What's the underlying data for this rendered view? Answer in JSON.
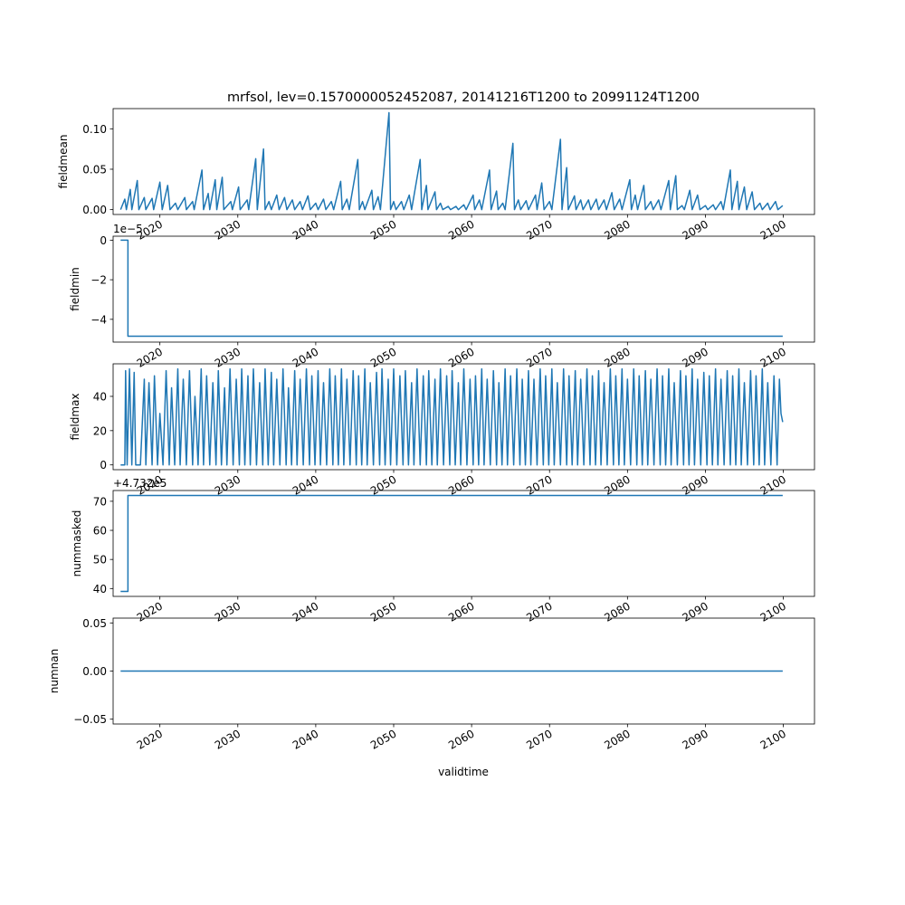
{
  "title": "mrfsol, lev=0.1570000052452087, 20141216T1200 to 20991124T1200",
  "xlabel": "validtime",
  "xticks": [
    "2020",
    "2030",
    "2040",
    "2050",
    "2060",
    "2070",
    "2080",
    "2090",
    "2100"
  ],
  "line_color": "#1f77b4",
  "chart_data": [
    {
      "type": "line",
      "ylabel": "fieldmean",
      "xlim": [
        2014.0,
        2104.0
      ],
      "ylim": [
        -0.006,
        0.125
      ],
      "yticks": [
        "0.00",
        "0.05",
        "0.10"
      ],
      "ytick_values": [
        0.0,
        0.05,
        0.1
      ],
      "offset_text": "",
      "x": [
        2014.96,
        2015.5,
        2015.7,
        2016.2,
        2016.4,
        2017.1,
        2017.3,
        2018.0,
        2018.2,
        2019.0,
        2019.2,
        2020.0,
        2020.3,
        2021.0,
        2021.3,
        2022.0,
        2022.3,
        2023.2,
        2023.4,
        2024.2,
        2024.4,
        2025.4,
        2025.6,
        2026.2,
        2026.4,
        2027.1,
        2027.3,
        2028.0,
        2028.2,
        2029.1,
        2029.3,
        2030.1,
        2030.3,
        2031.2,
        2031.4,
        2032.3,
        2032.5,
        2033.3,
        2033.5,
        2034.0,
        2034.3,
        2035.0,
        2035.3,
        2036.0,
        2036.3,
        2037.0,
        2037.3,
        2038.0,
        2038.3,
        2039.0,
        2039.3,
        2040.0,
        2040.3,
        2041.0,
        2041.3,
        2042.0,
        2042.3,
        2043.2,
        2043.4,
        2044.0,
        2044.3,
        2045.4,
        2045.6,
        2046.0,
        2046.3,
        2047.2,
        2047.4,
        2048.0,
        2048.3,
        2049.4,
        2049.6,
        2050.0,
        2050.3,
        2051.0,
        2051.3,
        2052.0,
        2052.3,
        2053.4,
        2053.6,
        2054.2,
        2054.4,
        2055.3,
        2055.5,
        2056.0,
        2056.3,
        2057.0,
        2057.3,
        2058.0,
        2058.3,
        2059.0,
        2059.3,
        2060.2,
        2060.4,
        2061.0,
        2061.3,
        2062.3,
        2062.5,
        2063.2,
        2063.4,
        2064.0,
        2064.3,
        2065.3,
        2065.5,
        2066.0,
        2066.3,
        2067.0,
        2067.3,
        2068.2,
        2068.4,
        2069.0,
        2069.3,
        2070.0,
        2070.3,
        2071.4,
        2071.6,
        2072.2,
        2072.4,
        2073.2,
        2073.4,
        2074.0,
        2074.3,
        2075.0,
        2075.3,
        2076.0,
        2076.3,
        2077.0,
        2077.3,
        2078.0,
        2078.3,
        2079.0,
        2079.3,
        2080.3,
        2080.5,
        2081.0,
        2081.3,
        2082.1,
        2082.3,
        2083.0,
        2083.3,
        2084.0,
        2084.3,
        2085.3,
        2085.5,
        2086.2,
        2086.4,
        2087.0,
        2087.3,
        2088.0,
        2088.3,
        2089.0,
        2089.3,
        2090.0,
        2090.3,
        2091.0,
        2091.3,
        2092.0,
        2092.3,
        2093.2,
        2093.4,
        2094.1,
        2094.3,
        2095.0,
        2095.3,
        2096.0,
        2096.3,
        2097.0,
        2097.3,
        2098.0,
        2098.3,
        2099.0,
        2099.3,
        2099.92
      ],
      "y": [
        0.0,
        0.013,
        0.0,
        0.025,
        0.0,
        0.036,
        0.0,
        0.015,
        0.0,
        0.014,
        0.0,
        0.034,
        0.0,
        0.03,
        0.0,
        0.008,
        0.0,
        0.015,
        0.0,
        0.01,
        0.0,
        0.049,
        0.0,
        0.02,
        0.0,
        0.037,
        0.0,
        0.04,
        0.0,
        0.01,
        0.0,
        0.028,
        0.0,
        0.012,
        0.0,
        0.063,
        0.0,
        0.075,
        0.0,
        0.01,
        0.0,
        0.018,
        0.0,
        0.015,
        0.0,
        0.012,
        0.0,
        0.01,
        0.0,
        0.017,
        0.0,
        0.008,
        0.0,
        0.013,
        0.0,
        0.01,
        0.0,
        0.035,
        0.0,
        0.013,
        0.0,
        0.062,
        0.0,
        0.01,
        0.0,
        0.024,
        0.0,
        0.016,
        0.0,
        0.12,
        0.0,
        0.01,
        0.0,
        0.01,
        0.0,
        0.018,
        0.0,
        0.062,
        0.0,
        0.03,
        0.0,
        0.022,
        0.0,
        0.008,
        0.0,
        0.004,
        0.0,
        0.004,
        0.0,
        0.006,
        0.0,
        0.018,
        0.0,
        0.012,
        0.0,
        0.049,
        0.0,
        0.023,
        0.0,
        0.008,
        0.0,
        0.082,
        0.0,
        0.012,
        0.0,
        0.011,
        0.0,
        0.018,
        0.0,
        0.033,
        0.0,
        0.01,
        0.0,
        0.087,
        0.0,
        0.052,
        0.0,
        0.017,
        0.0,
        0.012,
        0.0,
        0.012,
        0.0,
        0.013,
        0.0,
        0.012,
        0.0,
        0.021,
        0.0,
        0.013,
        0.0,
        0.037,
        0.0,
        0.018,
        0.0,
        0.03,
        0.0,
        0.01,
        0.0,
        0.012,
        0.0,
        0.036,
        0.0,
        0.042,
        0.0,
        0.005,
        0.0,
        0.024,
        0.0,
        0.018,
        0.0,
        0.005,
        0.0,
        0.006,
        0.0,
        0.01,
        0.0,
        0.049,
        0.0,
        0.035,
        0.0,
        0.028,
        0.0,
        0.022,
        0.0,
        0.008,
        0.0,
        0.008,
        0.0,
        0.01,
        0.0,
        0.005
      ]
    },
    {
      "type": "line",
      "ylabel": "fieldmin",
      "xlim": [
        2014.0,
        2104.0
      ],
      "ylim": [
        -5.15e-05,
        2e-06
      ],
      "yticks": [
        "0",
        "−2",
        "−4"
      ],
      "ytick_values": [
        0.0,
        -2e-05,
        -4e-05
      ],
      "offset_text": "1e−5",
      "x": [
        2014.96,
        2015.9,
        2015.9,
        2099.92
      ],
      "y": [
        0.0,
        0.0,
        -4.85e-05,
        -4.85e-05
      ]
    },
    {
      "type": "line",
      "ylabel": "fieldmax",
      "xlim": [
        2014.0,
        2104.0
      ],
      "ylim": [
        -2.8,
        59.0
      ],
      "yticks": [
        "0",
        "20",
        "40"
      ],
      "ytick_values": [
        0,
        20,
        40
      ],
      "offset_text": "",
      "x": [
        2014.96,
        2015.5,
        2015.6,
        2015.8,
        2016.1,
        2016.4,
        2016.7,
        2016.9,
        2017.5,
        2018.0,
        2018.2,
        2018.6,
        2019.0,
        2019.3,
        2019.7,
        2020.0,
        2020.4,
        2020.8,
        2021.2,
        2021.5,
        2021.9,
        2022.3,
        2022.6,
        2023.0,
        2023.4,
        2023.8,
        2024.2,
        2024.5,
        2024.9,
        2025.3,
        2025.6,
        2026.0,
        2026.4,
        2026.8,
        2027.2,
        2027.5,
        2027.9,
        2028.3,
        2028.6,
        2029.0,
        2029.4,
        2029.8,
        2030.2,
        2030.5,
        2030.9,
        2031.3,
        2031.6,
        2032.0,
        2032.4,
        2032.8,
        2033.2,
        2033.5,
        2033.9,
        2034.3,
        2034.6,
        2035.0,
        2035.4,
        2035.8,
        2036.2,
        2036.5,
        2036.9,
        2037.3,
        2037.6,
        2038.0,
        2038.4,
        2038.8,
        2039.2,
        2039.5,
        2039.9,
        2040.3,
        2040.6,
        2041.0,
        2041.4,
        2041.8,
        2042.2,
        2042.5,
        2042.9,
        2043.3,
        2043.6,
        2044.0,
        2044.4,
        2044.8,
        2045.2,
        2045.5,
        2045.9,
        2046.3,
        2046.6,
        2047.0,
        2047.4,
        2047.8,
        2048.2,
        2048.5,
        2048.9,
        2049.3,
        2049.6,
        2050.0,
        2050.4,
        2050.8,
        2051.2,
        2051.5,
        2051.9,
        2052.3,
        2052.6,
        2053.0,
        2053.4,
        2053.8,
        2054.2,
        2054.5,
        2054.9,
        2055.3,
        2055.6,
        2056.0,
        2056.4,
        2056.8,
        2057.2,
        2057.5,
        2057.9,
        2058.3,
        2058.6,
        2059.0,
        2059.4,
        2059.8,
        2060.2,
        2060.5,
        2060.9,
        2061.3,
        2061.6,
        2062.0,
        2062.4,
        2062.8,
        2063.2,
        2063.5,
        2063.9,
        2064.3,
        2064.6,
        2065.0,
        2065.4,
        2065.8,
        2066.2,
        2066.5,
        2066.9,
        2067.3,
        2067.6,
        2068.0,
        2068.4,
        2068.8,
        2069.2,
        2069.5,
        2069.9,
        2070.3,
        2070.6,
        2071.0,
        2071.4,
        2071.8,
        2072.2,
        2072.5,
        2072.9,
        2073.3,
        2073.6,
        2074.0,
        2074.4,
        2074.8,
        2075.2,
        2075.5,
        2075.9,
        2076.3,
        2076.6,
        2077.0,
        2077.4,
        2077.8,
        2078.2,
        2078.5,
        2078.9,
        2079.3,
        2079.6,
        2080.0,
        2080.4,
        2080.8,
        2081.2,
        2081.5,
        2081.9,
        2082.3,
        2082.6,
        2083.0,
        2083.4,
        2083.8,
        2084.2,
        2084.5,
        2084.9,
        2085.3,
        2085.6,
        2086.0,
        2086.4,
        2086.8,
        2087.2,
        2087.5,
        2087.9,
        2088.3,
        2088.6,
        2089.0,
        2089.4,
        2089.8,
        2090.2,
        2090.5,
        2090.9,
        2091.3,
        2091.6,
        2092.0,
        2092.4,
        2092.8,
        2093.2,
        2093.5,
        2093.9,
        2094.3,
        2094.6,
        2095.0,
        2095.4,
        2095.8,
        2096.2,
        2096.5,
        2096.9,
        2097.3,
        2097.6,
        2098.0,
        2098.4,
        2098.8,
        2099.2,
        2099.5,
        2099.7,
        2099.92
      ],
      "y": [
        0,
        0,
        55,
        0,
        56,
        0,
        54,
        0,
        0,
        50,
        0,
        48,
        0,
        52,
        0,
        30,
        0,
        55,
        0,
        45,
        0,
        56,
        0,
        50,
        0,
        55,
        0,
        40,
        0,
        56,
        0,
        52,
        0,
        48,
        0,
        55,
        0,
        45,
        0,
        56,
        0,
        50,
        0,
        56,
        0,
        52,
        0,
        56,
        0,
        48,
        0,
        56,
        0,
        54,
        0,
        50,
        0,
        56,
        0,
        45,
        0,
        55,
        0,
        50,
        0,
        56,
        0,
        52,
        0,
        55,
        0,
        48,
        0,
        56,
        0,
        52,
        0,
        56,
        0,
        50,
        0,
        55,
        0,
        52,
        0,
        56,
        0,
        48,
        0,
        54,
        0,
        56,
        0,
        50,
        0,
        56,
        0,
        52,
        0,
        55,
        0,
        48,
        0,
        56,
        0,
        52,
        0,
        55,
        0,
        50,
        0,
        56,
        0,
        52,
        0,
        55,
        0,
        48,
        0,
        56,
        0,
        50,
        0,
        52,
        0,
        56,
        0,
        50,
        0,
        55,
        0,
        48,
        0,
        56,
        0,
        52,
        0,
        56,
        0,
        50,
        0,
        55,
        0,
        50,
        0,
        56,
        0,
        52,
        0,
        56,
        0,
        48,
        0,
        56,
        0,
        52,
        0,
        55,
        0,
        50,
        0,
        56,
        0,
        52,
        0,
        55,
        0,
        48,
        0,
        56,
        0,
        52,
        0,
        56,
        0,
        50,
        0,
        56,
        0,
        52,
        0,
        55,
        0,
        50,
        0,
        56,
        0,
        52,
        0,
        56,
        0,
        48,
        0,
        55,
        0,
        52,
        0,
        56,
        0,
        50,
        0,
        54,
        0,
        52,
        0,
        56,
        0,
        50,
        0,
        55,
        0,
        52,
        0,
        56,
        0,
        48,
        0,
        55,
        0,
        52,
        0,
        56,
        0,
        48,
        0,
        52,
        0,
        50,
        30,
        25
      ]
    },
    {
      "type": "line",
      "ylabel": "nummasked",
      "xlim": [
        2014.0,
        2104.0
      ],
      "ylim": [
        37.3,
        73.7
      ],
      "yticks": [
        "40",
        "50",
        "60",
        "70"
      ],
      "ytick_values": [
        40,
        50,
        60,
        70
      ],
      "offset_text": "+4.732e5",
      "x": [
        2014.96,
        2015.9,
        2015.9,
        2099.92
      ],
      "y": [
        39,
        39,
        72,
        72
      ]
    },
    {
      "type": "line",
      "ylabel": "numnan",
      "xlim": [
        2014.0,
        2104.0
      ],
      "ylim": [
        -0.055,
        0.055
      ],
      "yticks": [
        "−0.05",
        "0.00",
        "0.05"
      ],
      "ytick_values": [
        -0.05,
        0.0,
        0.05
      ],
      "offset_text": "",
      "x": [
        2014.96,
        2099.92
      ],
      "y": [
        0.0,
        0.0
      ]
    }
  ]
}
